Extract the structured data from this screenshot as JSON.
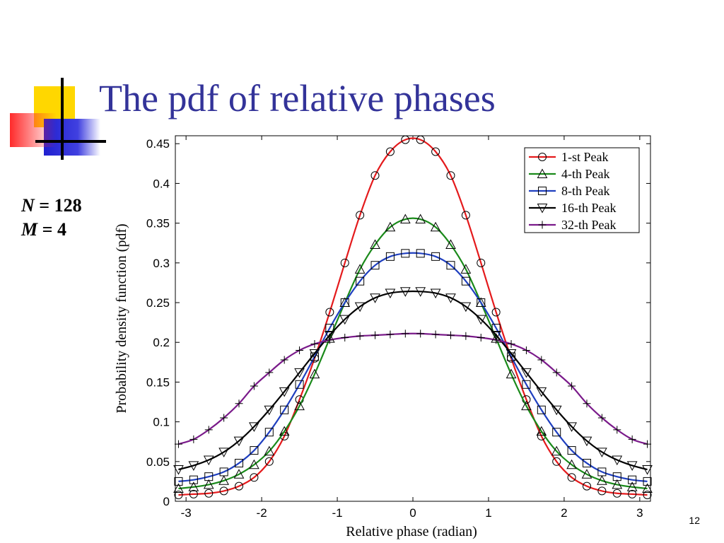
{
  "slide": {
    "title": "The pdf of relative phases",
    "params": [
      {
        "var": "N",
        "rest": " = 128"
      },
      {
        "var": "M",
        "rest": " = 4"
      }
    ],
    "page_number": "12"
  },
  "colors": {
    "title": "#333399",
    "logo_yellow": "#FFD700",
    "logo_red": "#FF3333",
    "logo_blue": "#2A2AD0"
  },
  "chart_data": {
    "type": "line",
    "xlabel": "Relative phase (radian)",
    "ylabel": "Probability density function (pdf)",
    "xlim": [
      -3.1416,
      3.1416
    ],
    "ylim": [
      0,
      0.46
    ],
    "xticks": [
      -3,
      -2,
      -1,
      0,
      1,
      2,
      3
    ],
    "xtick_labels": [
      "-3",
      "-2",
      "-1",
      "0",
      "1",
      "2",
      "3"
    ],
    "yticks": [
      0,
      0.05,
      0.1,
      0.15,
      0.2,
      0.25,
      0.3,
      0.35,
      0.4,
      0.45
    ],
    "ytick_labels": [
      "0",
      "0.05",
      "0.1",
      "0.15",
      "0.2",
      "0.25",
      "0.3",
      "0.35",
      "0.4",
      "0.45"
    ],
    "grid": false,
    "legend_position": "top-right",
    "x": [
      -3.1,
      -2.9,
      -2.7,
      -2.5,
      -2.3,
      -2.1,
      -1.9,
      -1.7,
      -1.5,
      -1.3,
      -1.1,
      -0.9,
      -0.7,
      -0.5,
      -0.3,
      -0.1,
      0.1,
      0.3,
      0.5,
      0.7,
      0.9,
      1.1,
      1.3,
      1.5,
      1.7,
      1.9,
      2.1,
      2.3,
      2.5,
      2.7,
      2.9,
      3.1
    ],
    "series": [
      {
        "name": "1-st Peak",
        "color": "#e41a1c",
        "marker": "circle",
        "values": [
          0.008,
          0.009,
          0.01,
          0.013,
          0.019,
          0.03,
          0.05,
          0.082,
          0.128,
          0.18,
          0.238,
          0.3,
          0.36,
          0.41,
          0.44,
          0.455,
          0.455,
          0.44,
          0.41,
          0.36,
          0.3,
          0.238,
          0.18,
          0.128,
          0.082,
          0.05,
          0.03,
          0.019,
          0.013,
          0.01,
          0.009,
          0.008
        ]
      },
      {
        "name": "4-th Peak",
        "color": "#1a8a1a",
        "marker": "triangle-up",
        "values": [
          0.016,
          0.018,
          0.021,
          0.026,
          0.034,
          0.046,
          0.063,
          0.088,
          0.12,
          0.16,
          0.205,
          0.25,
          0.292,
          0.323,
          0.345,
          0.355,
          0.355,
          0.345,
          0.323,
          0.292,
          0.25,
          0.205,
          0.16,
          0.12,
          0.088,
          0.063,
          0.046,
          0.034,
          0.026,
          0.021,
          0.018,
          0.016
        ]
      },
      {
        "name": "8-th Peak",
        "color": "#1f3fbf",
        "marker": "square",
        "values": [
          0.025,
          0.027,
          0.031,
          0.037,
          0.048,
          0.064,
          0.087,
          0.115,
          0.147,
          0.182,
          0.218,
          0.25,
          0.277,
          0.297,
          0.308,
          0.312,
          0.312,
          0.308,
          0.297,
          0.277,
          0.25,
          0.218,
          0.182,
          0.147,
          0.115,
          0.087,
          0.064,
          0.048,
          0.037,
          0.031,
          0.027,
          0.025
        ]
      },
      {
        "name": "16-th Peak",
        "color": "#000000",
        "marker": "triangle-down",
        "values": [
          0.04,
          0.045,
          0.052,
          0.062,
          0.076,
          0.094,
          0.115,
          0.138,
          0.162,
          0.186,
          0.209,
          0.229,
          0.245,
          0.256,
          0.262,
          0.264,
          0.264,
          0.262,
          0.256,
          0.245,
          0.229,
          0.209,
          0.186,
          0.162,
          0.138,
          0.115,
          0.094,
          0.076,
          0.062,
          0.052,
          0.045,
          0.04
        ]
      },
      {
        "name": "32-th Peak",
        "color": "#7a1a8a",
        "marker": "plus",
        "values": [
          0.072,
          0.078,
          0.09,
          0.105,
          0.123,
          0.145,
          0.162,
          0.178,
          0.19,
          0.198,
          0.203,
          0.206,
          0.208,
          0.209,
          0.21,
          0.211,
          0.211,
          0.21,
          0.209,
          0.208,
          0.206,
          0.203,
          0.198,
          0.19,
          0.178,
          0.162,
          0.145,
          0.123,
          0.105,
          0.09,
          0.078,
          0.072
        ]
      }
    ]
  }
}
